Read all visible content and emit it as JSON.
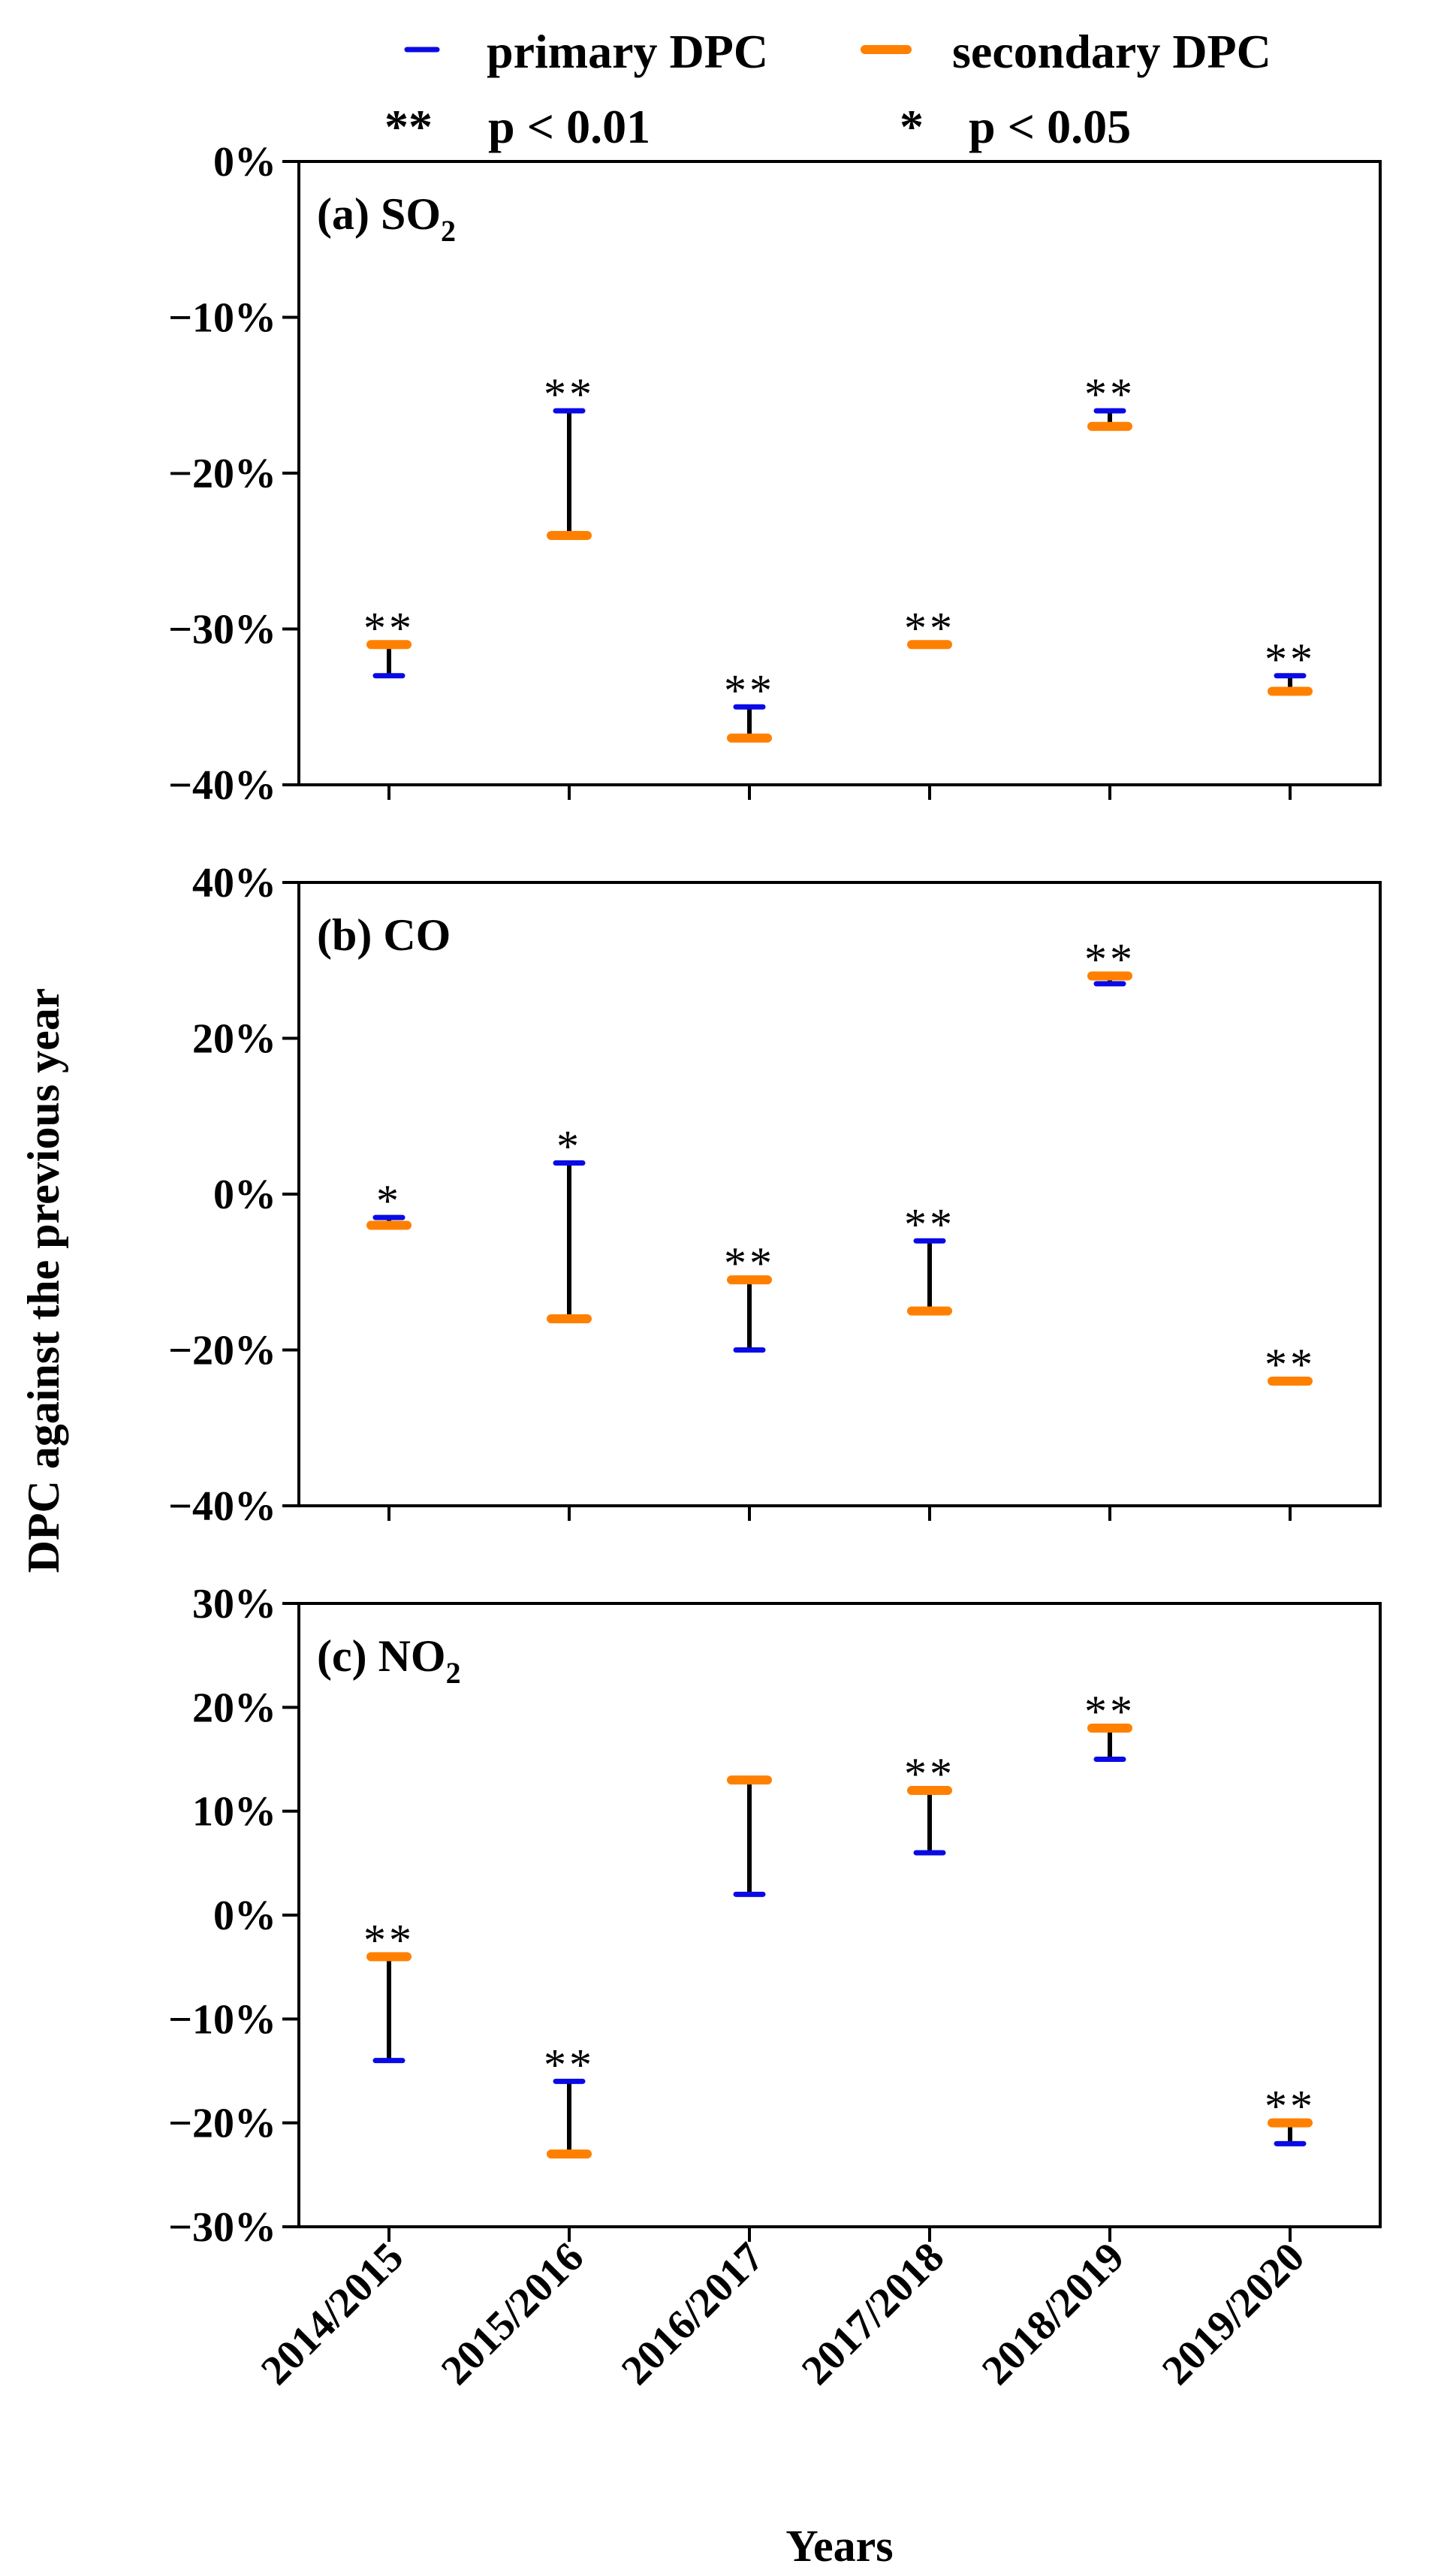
{
  "chart_data": {
    "type": "range-dot",
    "ylabel": "DPC against the previous year",
    "xlabel": "Years",
    "categories": [
      "2014/2015",
      "2015/2016",
      "2016/2017",
      "2017/2018",
      "2018/2019",
      "2019/2020"
    ],
    "legend": {
      "placement": "top",
      "series": [
        {
          "name": "primary DPC",
          "color": "#0a0ae6"
        },
        {
          "name": "secondary DPC",
          "color": "#ff8000"
        }
      ],
      "significance": [
        {
          "symbol": "**",
          "label": "p < 0.01"
        },
        {
          "symbol": "*",
          "label": "p < 0.05"
        }
      ]
    },
    "connector_color": "#000000",
    "panels": [
      {
        "id": "a",
        "title": "(a) SO",
        "title_subscript": "2",
        "ylim": [
          -40,
          0
        ],
        "yticks": [
          0,
          -10,
          -20,
          -30,
          -40
        ],
        "ytick_labels": [
          "0%",
          "−10%",
          "−20%",
          "−30%",
          "−40%"
        ],
        "primary": [
          -33,
          -16,
          -35,
          -31,
          -16,
          -33
        ],
        "secondary": [
          -31,
          -24,
          -37,
          -31,
          -17,
          -34
        ],
        "significance": [
          "**",
          "**",
          "**",
          "**",
          "**",
          "**"
        ]
      },
      {
        "id": "b",
        "title": "(b) CO",
        "title_subscript": "",
        "ylim": [
          -40,
          40
        ],
        "yticks": [
          40,
          20,
          0,
          -20,
          -40
        ],
        "ytick_labels": [
          "40%",
          "20%",
          "0%",
          "−20%",
          "−40%"
        ],
        "primary": [
          -3,
          4,
          -20,
          -6,
          27,
          -24
        ],
        "secondary": [
          -4,
          -16,
          -11,
          -15,
          28,
          -24
        ],
        "significance": [
          "*",
          "*",
          "**",
          "**",
          "**",
          "**"
        ]
      },
      {
        "id": "c",
        "title": "(c) NO",
        "title_subscript": "2",
        "ylim": [
          -30,
          30
        ],
        "yticks": [
          30,
          20,
          10,
          0,
          -10,
          -20,
          -30
        ],
        "ytick_labels": [
          "30%",
          "20%",
          "10%",
          "0%",
          "−10%",
          "−20%",
          "−30%"
        ],
        "primary": [
          -14,
          -16,
          2,
          6,
          15,
          -22
        ],
        "secondary": [
          -4,
          -23,
          13,
          12,
          18,
          -20
        ],
        "significance": [
          "**",
          "**",
          "",
          "**",
          "**",
          "**"
        ]
      }
    ]
  }
}
